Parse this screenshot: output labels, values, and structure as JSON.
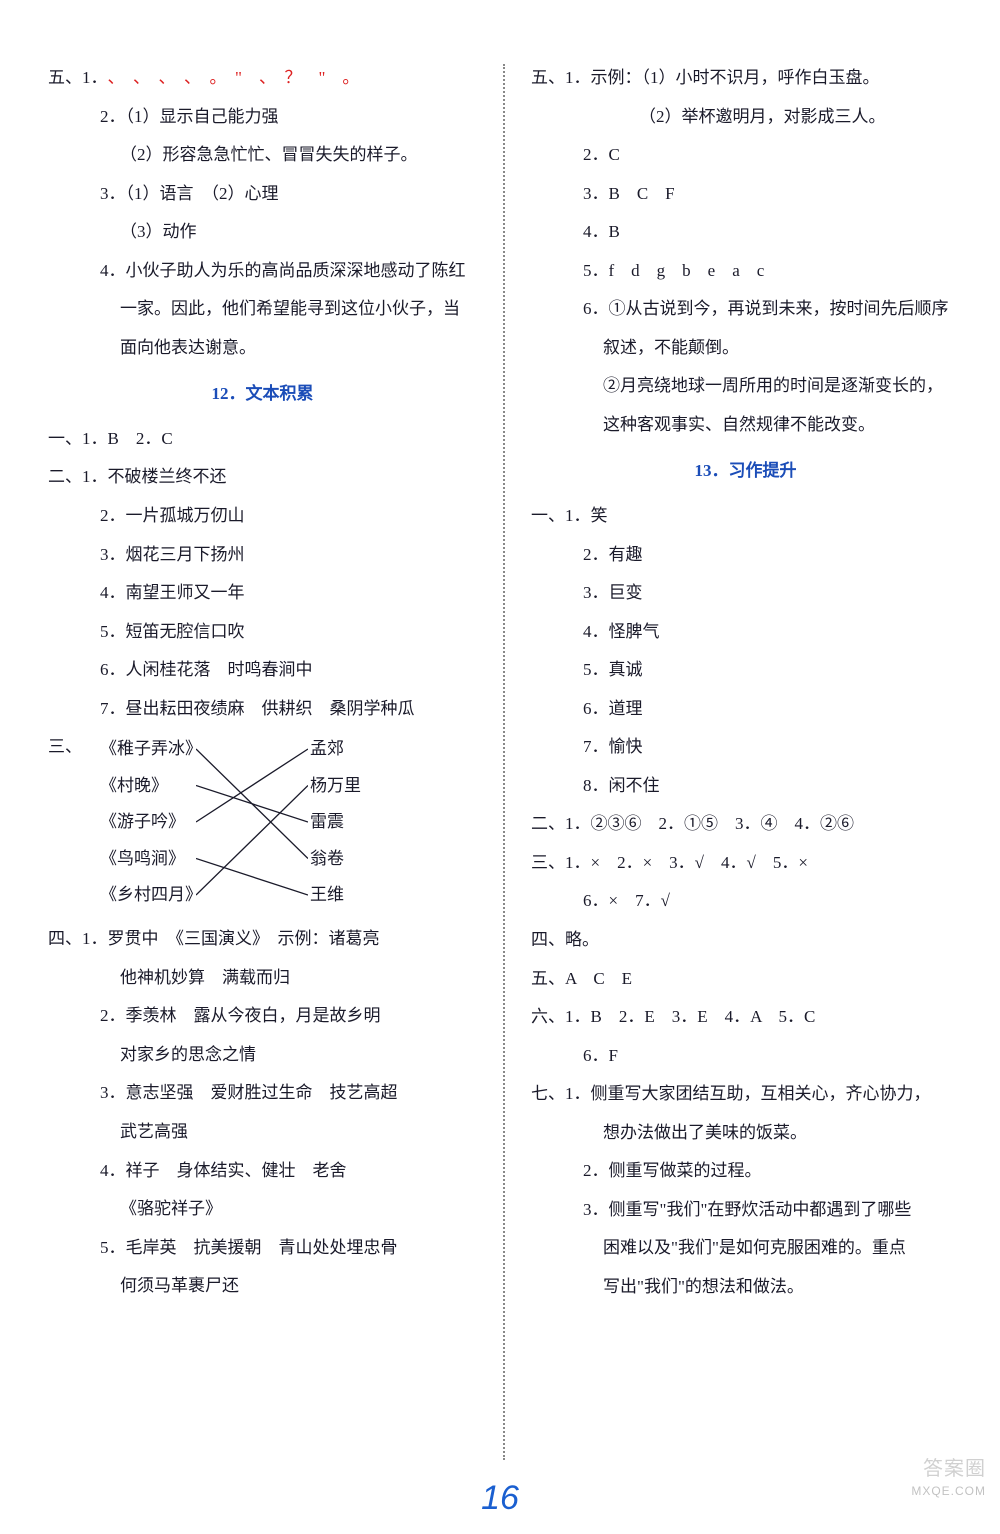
{
  "left": {
    "sec5": {
      "label": "五、",
      "item1_label": "1．",
      "item1_marks": "、　、　、　、　。　\"　、　？　\"　。",
      "item2_1": "2．（1）显示自己能力强",
      "item2_2": "（2）形容急急忙忙、冒冒失失的样子。",
      "item3_1": "3．（1）语言　（2）心理",
      "item3_2": "（3）动作",
      "item4_1": "4．小伙子助人为乐的高尚品质深深地感动了陈红",
      "item4_2": "一家。因此，他们希望能寻到这位小伙子，当",
      "item4_3": "面向他表达谢意。"
    },
    "heading12": "12．文本积累",
    "sec1": {
      "label": "一、",
      "text": "1．B　2．C"
    },
    "sec2": {
      "label": "二、",
      "i1": "1．不破楼兰终不还",
      "i2": "2．一片孤城万仞山",
      "i3": "3．烟花三月下扬州",
      "i4": "4．南望王师又一年",
      "i5": "5．短笛无腔信口吹",
      "i6": "6．人闲桂花落　时鸣春涧中",
      "i7": "7．昼出耘田夜绩麻　供耕织　桑阴学种瓜"
    },
    "sec3": {
      "label": "三、",
      "left_items": [
        "《稚子弄冰》",
        "《村晚》",
        "《游子吟》",
        "《鸟鸣涧》",
        "《乡村四月》"
      ],
      "right_items": [
        "孟郊",
        "杨万里",
        "雷震",
        "翁卷",
        "王维"
      ],
      "connections": [
        [
          0,
          3
        ],
        [
          1,
          2
        ],
        [
          2,
          0
        ],
        [
          3,
          4
        ],
        [
          4,
          1
        ]
      ],
      "line_color": "#1a1a2a"
    },
    "sec4": {
      "label": "四、",
      "i1a": "1．罗贯中　《三国演义》　示例：诸葛亮",
      "i1b": "他神机妙算　满载而归",
      "i2a": "2．季羡林　露从今夜白，月是故乡明",
      "i2b": "对家乡的思念之情",
      "i3a": "3．意志坚强　爱财胜过生命　技艺高超",
      "i3b": "武艺高强",
      "i4a": "4．祥子　身体结实、健壮　老舍",
      "i4b": "《骆驼祥子》",
      "i5a": "5．毛岸英　抗美援朝　青山处处埋忠骨",
      "i5b": "何须马革裹尸还"
    }
  },
  "right": {
    "sec5": {
      "label": "五、",
      "i1a": "1．示例：（1）小时不识月，呼作白玉盘。",
      "i1b": "（2）举杯邀明月，对影成三人。",
      "i2": "2．C",
      "i3": "3．B　C　F",
      "i4": "4．B",
      "i5": "5．f　d　g　b　e　a　c",
      "i6a": "6．①从古说到今，再说到未来，按时间先后顺序",
      "i6b": "叙述，不能颠倒。",
      "i6c": "②月亮绕地球一周所用的时间是逐渐变长的，",
      "i6d": "这种客观事实、自然规律不能改变。"
    },
    "heading13": "13．习作提升",
    "sec1": {
      "label": "一、",
      "i1": "1．笑",
      "i2": "2．有趣",
      "i3": "3．巨变",
      "i4": "4．怪脾气",
      "i5": "5．真诚",
      "i6": "6．道理",
      "i7": "7．愉快",
      "i8": "8．闲不住"
    },
    "sec2": {
      "label": "二、",
      "text": "1．②③⑥　2．①⑤　3．④　4．②⑥"
    },
    "sec3": {
      "label": "三、",
      "line1": "1．×　2．×　3．√　4．√　5．×",
      "line2": "6．×　7．√"
    },
    "sec4": {
      "label": "四、",
      "text": "略。"
    },
    "sec5b": {
      "label": "五、",
      "text": "A　C　E"
    },
    "sec6": {
      "label": "六、",
      "line1": "1．B　2．E　3．E　4．A　5．C",
      "line2": "6．F"
    },
    "sec7": {
      "label": "七、",
      "i1a": "1．侧重写大家团结互助，互相关心，齐心协力，",
      "i1b": "想办法做出了美味的饭菜。",
      "i2": "2．侧重写做菜的过程。",
      "i3a": "3．侧重写\"我们\"在野炊活动中都遇到了哪些",
      "i3b": "困难以及\"我们\"是如何克服困难的。重点",
      "i3c": "写出\"我们\"的想法和做法。"
    }
  },
  "pagenum": "16",
  "watermark_cn": "答案圈",
  "watermark_en": "MXQE.COM"
}
